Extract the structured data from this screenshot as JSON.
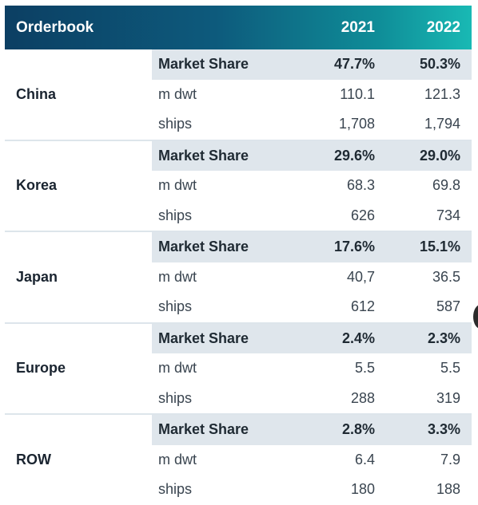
{
  "header": {
    "title": "Orderbook",
    "years": [
      "2021",
      "2022"
    ]
  },
  "regions": [
    {
      "name": "China",
      "rows": [
        {
          "label": "Market Share",
          "v2021": "47.7%",
          "v2022": "50.3%"
        },
        {
          "label": "m dwt",
          "v2021": "110.1",
          "v2022": "121.3"
        },
        {
          "label": "ships",
          "v2021": "1,708",
          "v2022": "1,794"
        }
      ]
    },
    {
      "name": "Korea",
      "rows": [
        {
          "label": "Market Share",
          "v2021": "29.6%",
          "v2022": "29.0%"
        },
        {
          "label": "m dwt",
          "v2021": "68.3",
          "v2022": "69.8"
        },
        {
          "label": "ships",
          "v2021": "626",
          "v2022": "734"
        }
      ]
    },
    {
      "name": "Japan",
      "rows": [
        {
          "label": "Market Share",
          "v2021": "17.6%",
          "v2022": "15.1%"
        },
        {
          "label": "m dwt",
          "v2021": "40,7",
          "v2022": "36.5"
        },
        {
          "label": "ships",
          "v2021": "612",
          "v2022": "587"
        }
      ]
    },
    {
      "name": "Europe",
      "rows": [
        {
          "label": "Market Share",
          "v2021": "2.4%",
          "v2022": "2.3%"
        },
        {
          "label": "m dwt",
          "v2021": "5.5",
          "v2022": "5.5"
        },
        {
          "label": "ships",
          "v2021": "288",
          "v2022": "319"
        }
      ]
    },
    {
      "name": "ROW",
      "rows": [
        {
          "label": "Market Share",
          "v2021": "2.8%",
          "v2022": "3.3%"
        },
        {
          "label": "m dwt",
          "v2021": "6.4",
          "v2022": "7.9"
        },
        {
          "label": "ships",
          "v2021": "180",
          "v2022": "188"
        }
      ]
    }
  ],
  "colors": {
    "header_start": "#0c3f63",
    "header_end": "#19b9b4",
    "share_row_bg": "#dfe6ec"
  }
}
